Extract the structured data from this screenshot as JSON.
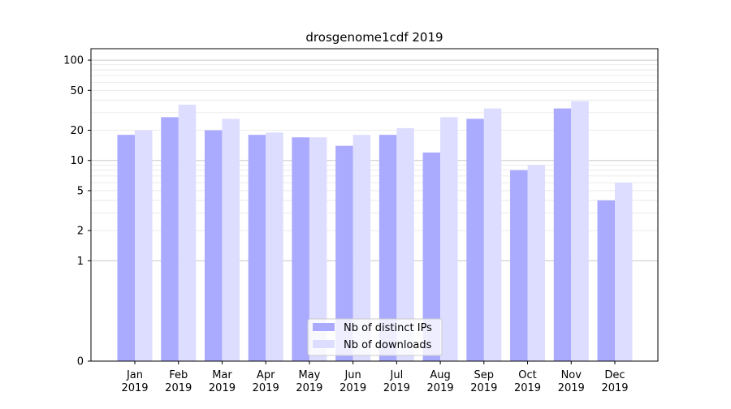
{
  "chart_data": {
    "type": "bar",
    "title": "drosgenome1cdf 2019",
    "xlabel": "",
    "ylabel": "",
    "y_scale": "symlog",
    "ylim": [
      0,
      130
    ],
    "yticks": [
      0,
      1,
      2,
      5,
      10,
      20,
      50,
      100
    ],
    "ytick_labels": [
      "0",
      "1",
      "2",
      "5",
      "10",
      "20",
      "50",
      "100"
    ],
    "categories": [
      {
        "month": "Jan",
        "year": "2019"
      },
      {
        "month": "Feb",
        "year": "2019"
      },
      {
        "month": "Mar",
        "year": "2019"
      },
      {
        "month": "Apr",
        "year": "2019"
      },
      {
        "month": "May",
        "year": "2019"
      },
      {
        "month": "Jun",
        "year": "2019"
      },
      {
        "month": "Jul",
        "year": "2019"
      },
      {
        "month": "Aug",
        "year": "2019"
      },
      {
        "month": "Sep",
        "year": "2019"
      },
      {
        "month": "Oct",
        "year": "2019"
      },
      {
        "month": "Nov",
        "year": "2019"
      },
      {
        "month": "Dec",
        "year": "2019"
      }
    ],
    "series": [
      {
        "name": "Nb of distinct IPs",
        "color": "#aaaaff",
        "values": [
          18,
          27,
          20,
          18,
          17,
          14,
          18,
          12,
          26,
          8,
          33,
          4
        ]
      },
      {
        "name": "Nb of downloads",
        "color": "#ddddff",
        "values": [
          20,
          36,
          26,
          19,
          17,
          18,
          21,
          27,
          33,
          9,
          39,
          6
        ]
      }
    ],
    "legend_position": "bottom-center",
    "grid": true
  }
}
